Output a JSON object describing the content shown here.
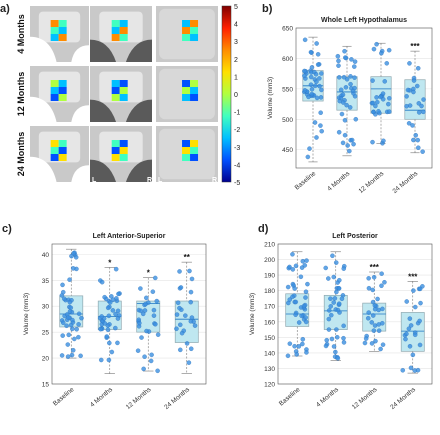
{
  "panel_a": {
    "letter": "a)",
    "row_labels": [
      "4 Months",
      "12 Months",
      "24 Months"
    ],
    "corner_labels": [
      "P",
      "A",
      "L",
      "R",
      "L",
      "R"
    ],
    "colorbar": {
      "ticks": [
        "5",
        "4",
        "3",
        "2",
        "1",
        "0",
        "-1",
        "-2",
        "-3",
        "-4",
        "-5"
      ],
      "colors": [
        "#7f0000",
        "#ff2000",
        "#ff8c00",
        "#ffe000",
        "#b0ff40",
        "#40ffc0",
        "#00c0ff",
        "#0050ff",
        "#00008f"
      ]
    }
  },
  "colors": {
    "box_fill": "#bfe7f0",
    "box_stroke": "#8fa8b0",
    "point": "#3a8fe0",
    "median": "#1f77c4"
  },
  "chart_data": [
    {
      "letter": "b)",
      "type": "box",
      "title": "Whole Left Hypothalamus",
      "ylabel": "Volume (mm3)",
      "categories": [
        "Baseline",
        "4 Months",
        "12 Months",
        "24 Months"
      ],
      "ylim": [
        420,
        650
      ],
      "yticks": [
        450,
        500,
        550,
        600,
        650
      ],
      "grid": true,
      "boxes": [
        {
          "min": 430,
          "q1": 530,
          "median": 555,
          "q3": 580,
          "max": 635
        },
        {
          "min": 440,
          "q1": 515,
          "median": 545,
          "q3": 570,
          "max": 620
        },
        {
          "min": 460,
          "q1": 510,
          "median": 550,
          "q3": 570,
          "max": 625
        },
        {
          "min": 445,
          "q1": 500,
          "median": 515,
          "q3": 565,
          "max": 612
        }
      ],
      "significance": [
        "",
        "",
        "",
        "***"
      ]
    },
    {
      "letter": "c)",
      "type": "box",
      "title": "Left Anterior-Superior",
      "ylabel": "Volume (mm3)",
      "categories": [
        "Baseline",
        "4 Months",
        "12 Months",
        "24 Months"
      ],
      "ylim": [
        15,
        42
      ],
      "yticks": [
        15,
        20,
        25,
        30,
        35,
        40
      ],
      "grid": true,
      "boxes": [
        {
          "min": 20,
          "q1": 26,
          "median": 28.5,
          "q3": 32,
          "max": 41
        },
        {
          "min": 17,
          "q1": 25.5,
          "median": 28,
          "q3": 31,
          "max": 37.5
        },
        {
          "min": 17.5,
          "q1": 25,
          "median": 30.5,
          "q3": 31,
          "max": 35.5
        },
        {
          "min": 17,
          "q1": 23,
          "median": 27.5,
          "q3": 31,
          "max": 38.5
        }
      ],
      "significance": [
        "",
        "*",
        "*",
        "**"
      ]
    },
    {
      "letter": "d)",
      "type": "box",
      "title": "Left Posterior",
      "ylabel": "Volume (mm3)",
      "categories": [
        "Baseline",
        "4 Months",
        "12 Months",
        "24 Months"
      ],
      "ylim": [
        120,
        210
      ],
      "yticks": [
        120,
        130,
        140,
        150,
        160,
        170,
        180,
        190,
        200,
        210
      ],
      "grid": true,
      "boxes": [
        {
          "min": 138,
          "q1": 157,
          "median": 165,
          "q3": 178,
          "max": 205
        },
        {
          "min": 135,
          "q1": 155,
          "median": 167,
          "q3": 177,
          "max": 205
        },
        {
          "min": 141,
          "q1": 154,
          "median": 165,
          "q3": 172,
          "max": 192
        },
        {
          "min": 127,
          "q1": 141,
          "median": 154,
          "q3": 166,
          "max": 186
        }
      ],
      "significance": [
        "",
        "",
        "***",
        "***"
      ]
    }
  ]
}
